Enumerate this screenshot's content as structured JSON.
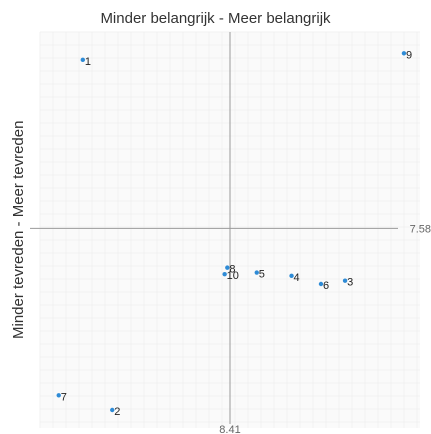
{
  "chart_data": {
    "type": "scatter",
    "title": "Minder belangrijk  -  Meer belangrijk",
    "ylabel": "Minder tevreden  -  Meer tevreden",
    "xlabel": "",
    "x_reference": {
      "value": 8.41,
      "label": "8.41"
    },
    "y_reference": {
      "value": 7.58,
      "label": "7.58"
    },
    "xlim": [
      7.7,
      9.12
    ],
    "ylim": [
      6.36,
      8.78
    ],
    "grid": true,
    "point_color": "#2E8BD6",
    "points": [
      {
        "label": "1",
        "x": 7.86,
        "y": 8.61
      },
      {
        "label": "2",
        "x": 7.97,
        "y": 6.47
      },
      {
        "label": "3",
        "x": 8.84,
        "y": 7.26
      },
      {
        "label": "4",
        "x": 8.64,
        "y": 7.29
      },
      {
        "label": "5",
        "x": 8.51,
        "y": 7.31
      },
      {
        "label": "6",
        "x": 8.75,
        "y": 7.24
      },
      {
        "label": "7",
        "x": 7.77,
        "y": 6.56
      },
      {
        "label": "8",
        "x": 8.4,
        "y": 7.34
      },
      {
        "label": "9",
        "x": 9.06,
        "y": 8.65
      },
      {
        "label": "10",
        "x": 8.39,
        "y": 7.3
      }
    ]
  }
}
